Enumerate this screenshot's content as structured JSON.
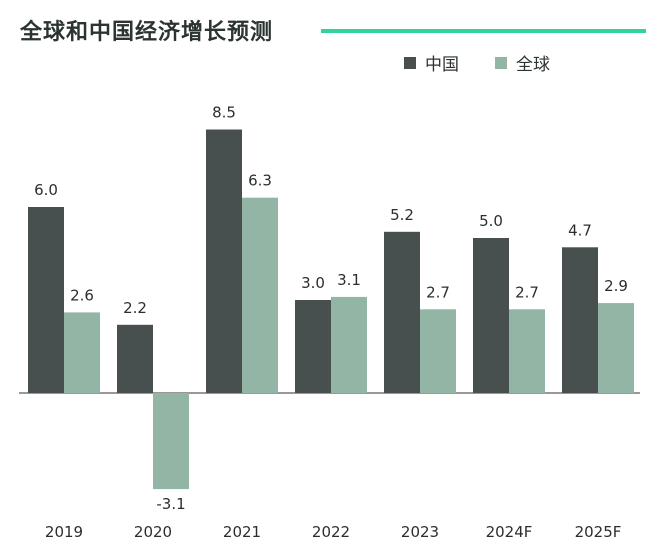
{
  "title": "全球和中国经济增长预测",
  "colors": {
    "china": "#474f4f",
    "global": "#93b5a6",
    "accent": "#2fd49a",
    "zero_line": "#333333",
    "text": "#2a2f2e"
  },
  "chart_data": {
    "type": "bar",
    "title": "全球和中国经济增长预测",
    "xlabel": "",
    "ylabel": "",
    "categories": [
      "2019",
      "2020",
      "2021",
      "2022",
      "2023",
      "2024F",
      "2025F"
    ],
    "series": [
      {
        "name": "中国",
        "values": [
          6.0,
          2.2,
          8.5,
          3.0,
          5.2,
          5.0,
          4.7
        ]
      },
      {
        "name": "全球",
        "values": [
          2.6,
          -3.1,
          6.3,
          3.1,
          2.7,
          2.7,
          2.9
        ]
      }
    ],
    "value_labels": [
      [
        "6.0",
        "2.2",
        "8.5",
        "3.0",
        "5.2",
        "5.0",
        "4.7"
      ],
      [
        "2.6",
        "-3.1",
        "6.3",
        "3.1",
        "2.7",
        "2.7",
        "2.9"
      ]
    ],
    "ylim": [
      -3.1,
      8.5
    ],
    "grid": false,
    "legend_position": "top-right"
  }
}
